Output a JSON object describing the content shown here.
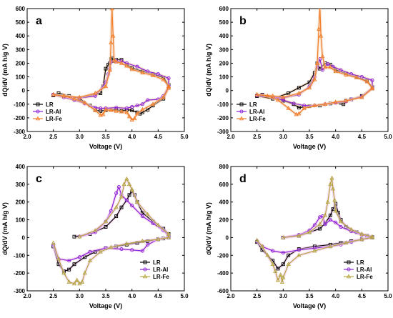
{
  "colors": {
    "LR": "#000000",
    "LR-Al": "#8a1fd6",
    "LR-Fe_ab": "#f07c28",
    "LR-Fe_cd": "#b3a640",
    "glow_ab": "#f6d2b5",
    "glow_cd": "#f3c8ec"
  },
  "chart_data": [
    {
      "type": "line",
      "panel_label": "a",
      "xlabel": "Voltage (V)",
      "ylabel": "dQ/dV (mA h/g V)",
      "xlim": [
        2.0,
        5.0
      ],
      "ylim": [
        -300,
        600
      ],
      "xticks": [
        "2.0",
        "2.5",
        "3.0",
        "3.5",
        "4.0",
        "4.5",
        "5.0"
      ],
      "yticks": [
        "-300",
        "-200",
        "-100",
        "0",
        "100",
        "200",
        "300",
        "400",
        "500",
        "600"
      ],
      "legend_position": "bottom-left",
      "series": [
        {
          "name": "LR",
          "color_key": "LR",
          "marker": "square",
          "x": [
            2.5,
            3.0,
            3.4,
            3.45,
            3.5,
            3.55,
            3.58,
            3.6,
            3.62,
            3.65,
            3.7,
            3.8,
            3.9,
            4.0,
            4.2,
            4.4,
            4.6,
            4.7,
            4.7,
            4.6,
            4.4,
            4.3,
            4.2,
            4.15,
            4.1,
            4.0,
            3.9,
            3.8,
            3.7,
            3.5,
            3.4,
            3.3,
            3.2,
            3.0,
            2.8,
            2.6,
            2.5
          ],
          "y": [
            -35,
            -55,
            -20,
            30,
            160,
            190,
            200,
            230,
            240,
            215,
            225,
            225,
            190,
            165,
            140,
            120,
            95,
            40,
            20,
            -60,
            -110,
            -140,
            -160,
            -170,
            -160,
            -145,
            -140,
            -150,
            -140,
            -145,
            -150,
            -145,
            -110,
            -60,
            -40,
            -20,
            -35
          ]
        },
        {
          "name": "LR-Al",
          "color_key": "LR-Al",
          "marker": "circle",
          "x": [
            2.5,
            3.0,
            3.3,
            3.5,
            3.55,
            3.58,
            3.6,
            3.7,
            3.8,
            3.9,
            4.1,
            4.3,
            4.5,
            4.7,
            4.7,
            4.6,
            4.5,
            4.3,
            4.2,
            4.1,
            4.0,
            3.9,
            3.7,
            3.5,
            3.4,
            3.3,
            3.1,
            2.9,
            2.7,
            2.5
          ],
          "y": [
            -30,
            -55,
            -40,
            60,
            120,
            160,
            210,
            215,
            215,
            200,
            175,
            140,
            120,
            90,
            30,
            -40,
            -65,
            -70,
            -100,
            -110,
            -120,
            -130,
            -125,
            -130,
            -130,
            -125,
            -95,
            -70,
            -50,
            -30
          ]
        },
        {
          "name": "LR-Fe",
          "color_key": "LR-Fe_ab",
          "marker": "triangle",
          "x": [
            2.5,
            2.7,
            3.0,
            3.3,
            3.5,
            3.58,
            3.6,
            3.62,
            3.64,
            3.66,
            3.7,
            3.8,
            3.9,
            4.0,
            4.2,
            4.4,
            4.6,
            4.7,
            4.7,
            4.6,
            4.4,
            4.2,
            4.1,
            4.05,
            4.0,
            3.95,
            3.9,
            3.8,
            3.7,
            3.6,
            3.5,
            3.45,
            3.4,
            3.3,
            3.1,
            2.9,
            2.7,
            2.5
          ],
          "y": [
            -30,
            -40,
            -50,
            -20,
            30,
            150,
            350,
            600,
            400,
            220,
            210,
            200,
            180,
            155,
            130,
            110,
            80,
            30,
            20,
            -50,
            -100,
            -140,
            -170,
            -205,
            -215,
            -190,
            -160,
            -155,
            -150,
            -145,
            -140,
            -175,
            -180,
            -145,
            -90,
            -60,
            -40,
            -30
          ]
        }
      ]
    },
    {
      "type": "line",
      "panel_label": "b",
      "xlabel": "Voltage (V)",
      "ylabel": "dQ/dV (mA h/g V)",
      "xlim": [
        2.0,
        5.0
      ],
      "ylim": [
        -300,
        600
      ],
      "xticks": [
        "2.0",
        "2.5",
        "3.0",
        "3.5",
        "4.0",
        "4.5",
        "5.0"
      ],
      "yticks": [
        "-300",
        "-200",
        "-100",
        "0",
        "100",
        "200",
        "300",
        "400",
        "500",
        "600"
      ],
      "legend_position": "bottom-left",
      "series": [
        {
          "name": "LR",
          "color_key": "LR",
          "marker": "square",
          "x": [
            2.5,
            2.8,
            3.1,
            3.3,
            3.5,
            3.6,
            3.65,
            3.7,
            3.8,
            3.9,
            4.0,
            4.2,
            4.4,
            4.6,
            4.7,
            4.7,
            4.5,
            4.3,
            4.2,
            4.15,
            4.1,
            3.9,
            3.7,
            3.5,
            3.3,
            3.2,
            3.0,
            2.8,
            2.6,
            2.5
          ],
          "y": [
            -40,
            -60,
            -20,
            20,
            60,
            130,
            200,
            160,
            200,
            190,
            150,
            125,
            100,
            70,
            25,
            15,
            -40,
            -65,
            -75,
            -100,
            -90,
            -95,
            -110,
            -115,
            -125,
            -100,
            -75,
            -50,
            -30,
            -40
          ]
        },
        {
          "name": "LR-Al",
          "color_key": "LR-Al",
          "marker": "circle",
          "x": [
            2.5,
            3.0,
            3.3,
            3.5,
            3.6,
            3.65,
            3.7,
            3.75,
            3.85,
            3.95,
            4.1,
            4.3,
            4.5,
            4.7,
            4.7,
            4.5,
            4.3,
            4.2,
            4.0,
            3.8,
            3.6,
            3.4,
            3.2,
            3.0,
            2.8,
            2.6,
            2.5
          ],
          "y": [
            -35,
            -55,
            -30,
            30,
            100,
            170,
            230,
            150,
            195,
            175,
            150,
            120,
            100,
            75,
            20,
            -45,
            -65,
            -80,
            -90,
            -100,
            -110,
            -110,
            -95,
            -70,
            -50,
            -35,
            -35
          ]
        },
        {
          "name": "LR-Fe",
          "color_key": "LR-Fe_ab",
          "marker": "triangle",
          "x": [
            2.5,
            2.8,
            3.0,
            3.3,
            3.5,
            3.6,
            3.65,
            3.68,
            3.7,
            3.72,
            3.75,
            3.8,
            3.9,
            4.0,
            4.2,
            4.4,
            4.6,
            4.7,
            4.7,
            4.5,
            4.2,
            4.0,
            3.8,
            3.6,
            3.4,
            3.3,
            3.25,
            3.1,
            2.9,
            2.7,
            2.5
          ],
          "y": [
            -30,
            -40,
            -50,
            -20,
            20,
            80,
            200,
            450,
            620,
            400,
            250,
            170,
            170,
            140,
            115,
            95,
            65,
            20,
            15,
            -50,
            -75,
            -85,
            -100,
            -110,
            -130,
            -170,
            -175,
            -130,
            -70,
            -40,
            -30
          ]
        }
      ]
    },
    {
      "type": "line",
      "panel_label": "c",
      "xlabel": "Voltage (V)",
      "ylabel": "dQ/dV (mA h/g  V)",
      "xlim": [
        2.0,
        5.0
      ],
      "ylim": [
        -300,
        400
      ],
      "xticks": [
        "2.0",
        "2.5",
        "3.0",
        "3.5",
        "4.0",
        "4.5",
        "5.0"
      ],
      "yticks": [
        "-300",
        "-200",
        "-100",
        "0",
        "100",
        "200",
        "300",
        "400"
      ],
      "legend_position": "bottom-right",
      "series": [
        {
          "name": "LR",
          "color_key": "LR",
          "marker": "square",
          "x": [
            2.9,
            3.2,
            3.5,
            3.7,
            3.8,
            3.9,
            3.95,
            4.0,
            4.05,
            4.1,
            4.2,
            4.4,
            4.6,
            4.7,
            4.7,
            4.6,
            4.5,
            4.3,
            4.1,
            3.9,
            3.7,
            3.5,
            3.3,
            3.1,
            2.9,
            2.8,
            2.7,
            2.6,
            2.5
          ],
          "y": [
            5,
            20,
            60,
            120,
            170,
            210,
            240,
            260,
            240,
            200,
            140,
            90,
            50,
            20,
            0,
            -5,
            -10,
            -20,
            -30,
            -40,
            -50,
            -60,
            -80,
            -110,
            -150,
            -180,
            -190,
            -150,
            -50
          ]
        },
        {
          "name": "LR-Al",
          "color_key": "LR-Al",
          "marker": "circle",
          "x": [
            3.0,
            3.3,
            3.5,
            3.6,
            3.7,
            3.75,
            3.8,
            3.9,
            4.0,
            4.2,
            4.4,
            4.6,
            4.7,
            4.7,
            4.5,
            4.3,
            4.2,
            4.0,
            3.8,
            3.5,
            3.2,
            3.0,
            2.8,
            2.6,
            2.5
          ],
          "y": [
            5,
            30,
            90,
            150,
            250,
            285,
            240,
            210,
            180,
            120,
            80,
            40,
            10,
            0,
            -10,
            -40,
            -75,
            -70,
            -65,
            -60,
            -80,
            -110,
            -130,
            -120,
            -40
          ]
        },
        {
          "name": "LR-Fe",
          "color_key": "LR-Fe_cd",
          "marker": "triangle",
          "x": [
            3.0,
            3.3,
            3.5,
            3.7,
            3.8,
            3.85,
            3.9,
            3.95,
            4.0,
            4.1,
            4.3,
            4.5,
            4.7,
            4.7,
            4.5,
            4.2,
            3.9,
            3.6,
            3.4,
            3.2,
            3.1,
            3.05,
            3.0,
            2.95,
            2.9,
            2.8,
            2.7,
            2.6,
            2.5
          ],
          "y": [
            5,
            40,
            90,
            170,
            230,
            300,
            330,
            300,
            270,
            200,
            130,
            70,
            20,
            0,
            -10,
            -20,
            -35,
            -55,
            -80,
            -130,
            -200,
            -250,
            -260,
            -240,
            -260,
            -250,
            -200,
            -120,
            -30
          ]
        }
      ]
    },
    {
      "type": "line",
      "panel_label": "d",
      "xlabel": "Voltage (V)",
      "ylabel": "dQ/dV (mA h/g V)",
      "xlim": [
        2.0,
        5.0
      ],
      "ylim": [
        -600,
        800
      ],
      "xticks": [
        "2.0",
        "2.5",
        "3.0",
        "3.5",
        "4.0",
        "4.5",
        "5.0"
      ],
      "yticks": [
        "-600",
        "-400",
        "-200",
        "0",
        "200",
        "400",
        "600",
        "800"
      ],
      "legend_position": "bottom-right",
      "series": [
        {
          "name": "LR",
          "color_key": "LR",
          "marker": "square",
          "x": [
            3.0,
            3.3,
            3.5,
            3.7,
            3.8,
            3.9,
            3.95,
            4.0,
            4.05,
            4.1,
            4.2,
            4.4,
            4.6,
            4.7,
            4.7,
            4.5,
            4.3,
            4.1,
            3.9,
            3.6,
            3.3,
            3.1,
            3.0,
            2.9,
            2.8,
            2.6,
            2.5
          ],
          "y": [
            0,
            20,
            60,
            100,
            160,
            250,
            320,
            380,
            280,
            200,
            120,
            60,
            20,
            5,
            0,
            -20,
            -40,
            -60,
            -80,
            -100,
            -130,
            -200,
            -300,
            -350,
            -260,
            -140,
            -50
          ]
        },
        {
          "name": "LR-Al",
          "color_key": "LR-Al",
          "marker": "circle",
          "x": [
            3.0,
            3.3,
            3.5,
            3.6,
            3.7,
            3.75,
            3.8,
            3.9,
            4.0,
            4.1,
            4.3,
            4.5,
            4.7,
            4.7,
            4.5,
            4.3,
            4.1,
            3.9,
            3.6,
            3.3,
            3.0,
            2.8,
            2.6,
            2.5
          ],
          "y": [
            0,
            30,
            80,
            140,
            230,
            240,
            150,
            200,
            170,
            120,
            70,
            30,
            5,
            0,
            -20,
            -50,
            -80,
            -100,
            -120,
            -140,
            -170,
            -150,
            -100,
            -40
          ]
        },
        {
          "name": "LR-Fe",
          "color_key": "LR-Fe_cd",
          "marker": "triangle",
          "x": [
            3.0,
            3.3,
            3.5,
            3.7,
            3.8,
            3.85,
            3.9,
            3.93,
            3.95,
            3.98,
            4.0,
            4.1,
            4.3,
            4.5,
            4.7,
            4.7,
            4.5,
            4.2,
            3.9,
            3.6,
            3.3,
            3.1,
            3.0,
            2.98,
            2.95,
            2.9,
            2.85,
            2.8,
            2.7,
            2.6,
            2.5
          ],
          "y": [
            0,
            20,
            60,
            150,
            250,
            400,
            600,
            670,
            550,
            420,
            300,
            180,
            90,
            40,
            10,
            0,
            -20,
            -60,
            -100,
            -150,
            -200,
            -300,
            -450,
            -500,
            -420,
            -480,
            -380,
            -300,
            -200,
            -100,
            -30
          ]
        }
      ]
    }
  ]
}
